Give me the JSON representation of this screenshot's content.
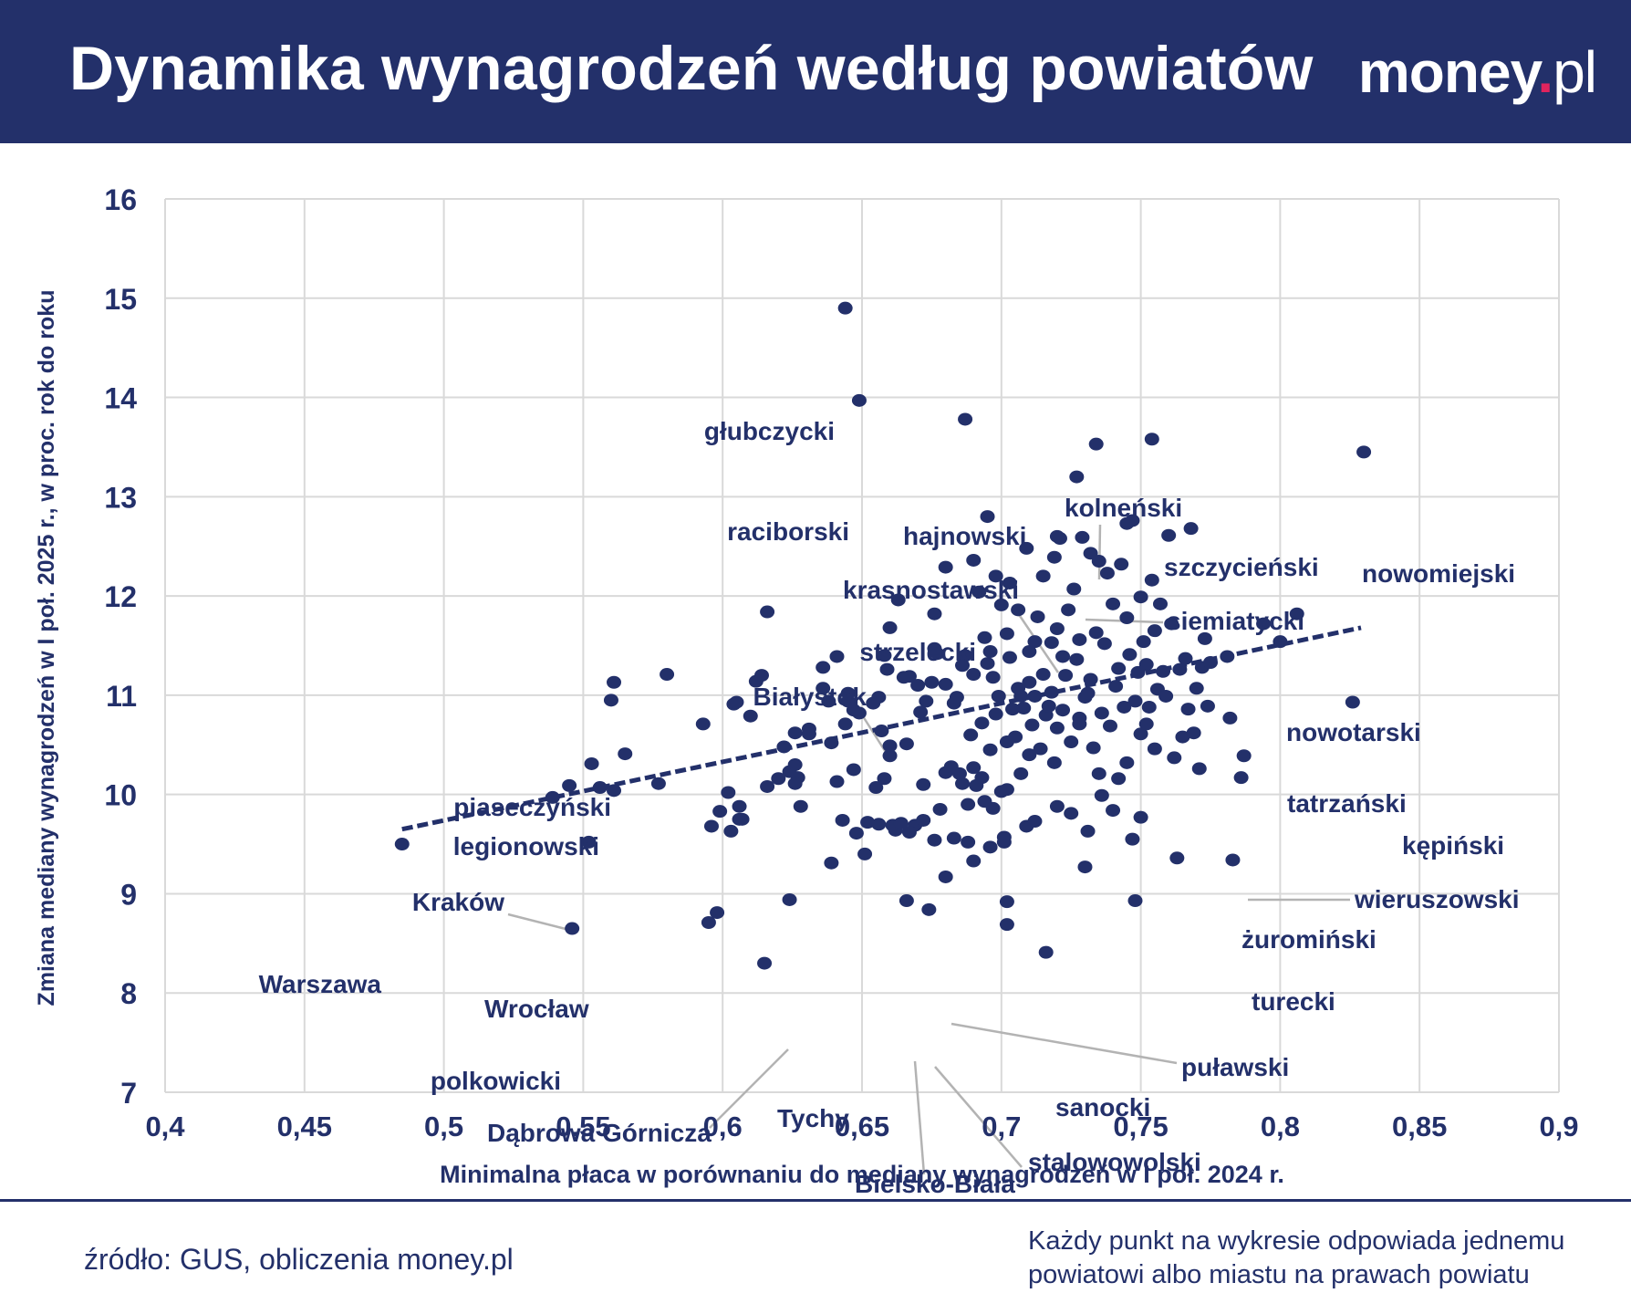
{
  "header": {
    "title": "Dynamika wynagrodzeń według powiatów",
    "logo_main": "money",
    "logo_dot": ".",
    "logo_suffix": "pl"
  },
  "footer": {
    "source": "źródło: GUS, obliczenia money.pl",
    "note_line1": "Każdy punkt na wykresie odpowiada jednemu",
    "note_line2": "powiatowi albo miastu na prawach powiatu"
  },
  "colors": {
    "navy": "#23306a",
    "grid": "#d9d9d9",
    "leader": "#b3b3b3",
    "logo_dot": "#e0245e",
    "background": "#ffffff"
  },
  "chart_data": {
    "type": "scatter",
    "title": "Dynamika wynagrodzeń według powiatów",
    "xlabel": "Minimalna płaca w porównaniu do mediany wynagrodzeń w I poł. 2024 r.",
    "ylabel": "Zmiana mediany wynagrodzeń w I poł. 2025 r., w proc. rok do roku",
    "xlim": [
      0.4,
      0.9
    ],
    "ylim": [
      7,
      16
    ],
    "x_ticks": [
      0.4,
      0.45,
      0.5,
      0.55,
      0.6,
      0.65,
      0.7,
      0.75,
      0.8,
      0.85,
      0.9
    ],
    "x_tick_labels": [
      "0,4",
      "0,45",
      "0,5",
      "0,55",
      "0,6",
      "0,65",
      "0,7",
      "0,75",
      "0,8",
      "0,85",
      "0,9"
    ],
    "y_ticks": [
      7,
      8,
      9,
      10,
      11,
      12,
      13,
      14,
      15,
      16
    ],
    "y_tick_labels": [
      "7",
      "8",
      "9",
      "10",
      "11",
      "12",
      "13",
      "14",
      "15",
      "16"
    ],
    "grid": true,
    "trendline": {
      "style": "dashed",
      "x": [
        0.485,
        0.829
      ],
      "y": [
        9.65,
        11.68
      ]
    },
    "labeled_points": [
      {
        "label": "głubczycki",
        "x": 0.644,
        "y": 14.9
      },
      {
        "label": "raciborski",
        "x": 0.649,
        "y": 13.97
      },
      {
        "label": "hajnowski",
        "x": 0.687,
        "y": 13.78
      },
      {
        "label": "kolneński",
        "x": 0.734,
        "y": 13.53
      },
      {
        "label": "szczycieński",
        "x": 0.754,
        "y": 13.58
      },
      {
        "label": "nowomiejski",
        "x": 0.83,
        "y": 13.45
      },
      {
        "label": "krasnostawski",
        "x": 0.72,
        "y": 12.6
      },
      {
        "label": "siemiatycki",
        "x": 0.727,
        "y": 13.2
      },
      {
        "label": "strzelecki",
        "x": 0.695,
        "y": 12.8
      },
      {
        "label": "Białystok",
        "x": 0.66,
        "y": 11.68
      },
      {
        "label": "nowotarski",
        "x": 0.806,
        "y": 11.82
      },
      {
        "label": "tatrzański",
        "x": 0.8,
        "y": 11.54
      },
      {
        "label": "kępiński",
        "x": 0.826,
        "y": 10.93
      },
      {
        "label": "piaseczyński",
        "x": 0.561,
        "y": 11.13
      },
      {
        "label": "legionowski",
        "x": 0.56,
        "y": 10.95
      },
      {
        "label": "Kraków",
        "x": 0.545,
        "y": 10.09
      },
      {
        "label": "wieruszowski",
        "x": 0.787,
        "y": 10.39
      },
      {
        "label": "żuromiński",
        "x": 0.786,
        "y": 10.17
      },
      {
        "label": "Warszawa",
        "x": 0.485,
        "y": 9.5
      },
      {
        "label": "Wrocław",
        "x": 0.552,
        "y": 9.52
      },
      {
        "label": "turecki",
        "x": 0.783,
        "y": 9.34
      },
      {
        "label": "puławski",
        "x": 0.68,
        "y": 9.17
      },
      {
        "label": "polkowicki",
        "x": 0.546,
        "y": 8.65
      },
      {
        "label": "Dąbrowa Górnicza",
        "x": 0.624,
        "y": 8.94
      },
      {
        "label": "Tychy",
        "x": 0.615,
        "y": 8.3
      },
      {
        "label": "sanocki",
        "x": 0.716,
        "y": 8.41
      },
      {
        "label": "stalowowolski",
        "x": 0.674,
        "y": 8.84
      },
      {
        "label": "Bielsko-Biała",
        "x": 0.666,
        "y": 8.93
      }
    ],
    "other_points": [
      [
        0.539,
        9.97
      ],
      [
        0.553,
        10.31
      ],
      [
        0.556,
        10.07
      ],
      [
        0.561,
        10.04
      ],
      [
        0.565,
        10.41
      ],
      [
        0.577,
        10.11
      ],
      [
        0.58,
        11.21
      ],
      [
        0.593,
        10.71
      ],
      [
        0.596,
        9.68
      ],
      [
        0.599,
        9.83
      ],
      [
        0.602,
        10.02
      ],
      [
        0.603,
        9.63
      ],
      [
        0.606,
        9.88
      ],
      [
        0.607,
        9.75
      ],
      [
        0.604,
        10.91
      ],
      [
        0.605,
        10.93
      ],
      [
        0.61,
        10.79
      ],
      [
        0.612,
        11.14
      ],
      [
        0.614,
        11.2
      ],
      [
        0.616,
        11.84
      ],
      [
        0.616,
        10.08
      ],
      [
        0.62,
        10.16
      ],
      [
        0.622,
        10.48
      ],
      [
        0.624,
        10.23
      ],
      [
        0.626,
        10.62
      ],
      [
        0.627,
        10.17
      ],
      [
        0.628,
        9.88
      ],
      [
        0.631,
        10.66
      ],
      [
        0.636,
        11.28
      ],
      [
        0.636,
        11.07
      ],
      [
        0.638,
        10.94
      ],
      [
        0.639,
        10.52
      ],
      [
        0.641,
        10.13
      ],
      [
        0.641,
        11.39
      ],
      [
        0.643,
        9.74
      ],
      [
        0.644,
        10.71
      ],
      [
        0.645,
        10.94
      ],
      [
        0.645,
        11.02
      ],
      [
        0.647,
        10.85
      ],
      [
        0.647,
        10.25
      ],
      [
        0.648,
        9.61
      ],
      [
        0.649,
        10.82
      ],
      [
        0.651,
        9.4
      ],
      [
        0.652,
        9.72
      ],
      [
        0.654,
        10.92
      ],
      [
        0.655,
        10.07
      ],
      [
        0.656,
        9.7
      ],
      [
        0.657,
        10.64
      ],
      [
        0.658,
        10.16
      ],
      [
        0.658,
        11.4
      ],
      [
        0.659,
        11.26
      ],
      [
        0.66,
        10.39
      ],
      [
        0.66,
        10.49
      ],
      [
        0.661,
        9.69
      ],
      [
        0.662,
        9.64
      ],
      [
        0.663,
        11.96
      ],
      [
        0.664,
        9.71
      ],
      [
        0.665,
        11.18
      ],
      [
        0.667,
        11.19
      ],
      [
        0.669,
        9.69
      ],
      [
        0.67,
        11.1
      ],
      [
        0.671,
        10.83
      ],
      [
        0.672,
        10.1
      ],
      [
        0.672,
        9.74
      ],
      [
        0.673,
        10.94
      ],
      [
        0.675,
        11.13
      ],
      [
        0.676,
        11.47
      ],
      [
        0.676,
        11.82
      ],
      [
        0.677,
        11.42
      ],
      [
        0.678,
        9.85
      ],
      [
        0.68,
        11.11
      ],
      [
        0.68,
        10.22
      ],
      [
        0.68,
        12.29
      ],
      [
        0.682,
        10.28
      ],
      [
        0.683,
        10.92
      ],
      [
        0.684,
        10.98
      ],
      [
        0.685,
        10.21
      ],
      [
        0.686,
        10.11
      ],
      [
        0.687,
        11.4
      ],
      [
        0.688,
        9.9
      ],
      [
        0.689,
        10.6
      ],
      [
        0.69,
        10.27
      ],
      [
        0.69,
        11.21
      ],
      [
        0.69,
        12.36
      ],
      [
        0.691,
        10.09
      ],
      [
        0.692,
        12.04
      ],
      [
        0.693,
        10.72
      ],
      [
        0.693,
        10.17
      ],
      [
        0.694,
        11.58
      ],
      [
        0.694,
        9.93
      ],
      [
        0.695,
        11.32
      ],
      [
        0.696,
        9.47
      ],
      [
        0.696,
        10.45
      ],
      [
        0.697,
        11.18
      ],
      [
        0.698,
        12.2
      ],
      [
        0.698,
        10.81
      ],
      [
        0.699,
        10.99
      ],
      [
        0.7,
        11.91
      ],
      [
        0.701,
        9.57
      ],
      [
        0.701,
        9.52
      ],
      [
        0.702,
        11.62
      ],
      [
        0.702,
        10.05
      ],
      [
        0.703,
        12.13
      ],
      [
        0.703,
        11.38
      ],
      [
        0.704,
        10.86
      ],
      [
        0.705,
        10.58
      ],
      [
        0.706,
        11.86
      ],
      [
        0.707,
        10.21
      ],
      [
        0.708,
        10.87
      ],
      [
        0.709,
        12.48
      ],
      [
        0.709,
        9.68
      ],
      [
        0.71,
        11.44
      ],
      [
        0.71,
        11.13
      ],
      [
        0.711,
        10.7
      ],
      [
        0.712,
        10.99
      ],
      [
        0.713,
        11.79
      ],
      [
        0.714,
        10.46
      ],
      [
        0.715,
        12.2
      ],
      [
        0.715,
        11.21
      ],
      [
        0.716,
        10.8
      ],
      [
        0.717,
        10.89
      ],
      [
        0.718,
        11.53
      ],
      [
        0.719,
        12.39
      ],
      [
        0.72,
        11.67
      ],
      [
        0.72,
        10.67
      ],
      [
        0.721,
        12.58
      ],
      [
        0.722,
        10.85
      ],
      [
        0.723,
        11.2
      ],
      [
        0.724,
        11.86
      ],
      [
        0.725,
        10.53
      ],
      [
        0.725,
        9.81
      ],
      [
        0.726,
        12.07
      ],
      [
        0.727,
        11.36
      ],
      [
        0.728,
        10.77
      ],
      [
        0.728,
        11.56
      ],
      [
        0.729,
        12.59
      ],
      [
        0.73,
        10.98
      ],
      [
        0.73,
        9.27
      ],
      [
        0.731,
        11.02
      ],
      [
        0.732,
        12.43
      ],
      [
        0.733,
        10.47
      ],
      [
        0.734,
        11.63
      ],
      [
        0.735,
        12.35
      ],
      [
        0.736,
        10.82
      ],
      [
        0.737,
        11.52
      ],
      [
        0.738,
        12.23
      ],
      [
        0.739,
        10.69
      ],
      [
        0.74,
        11.92
      ],
      [
        0.741,
        11.09
      ],
      [
        0.742,
        10.16
      ],
      [
        0.743,
        12.32
      ],
      [
        0.744,
        10.88
      ],
      [
        0.745,
        11.78
      ],
      [
        0.746,
        11.41
      ],
      [
        0.747,
        12.76
      ],
      [
        0.747,
        9.55
      ],
      [
        0.748,
        10.94
      ],
      [
        0.749,
        11.23
      ],
      [
        0.75,
        11.99
      ],
      [
        0.75,
        10.61
      ],
      [
        0.751,
        11.54
      ],
      [
        0.752,
        11.31
      ],
      [
        0.753,
        10.88
      ],
      [
        0.754,
        12.16
      ],
      [
        0.755,
        11.65
      ],
      [
        0.756,
        11.06
      ],
      [
        0.757,
        11.92
      ],
      [
        0.758,
        11.24
      ],
      [
        0.759,
        10.99
      ],
      [
        0.76,
        12.61
      ],
      [
        0.761,
        11.72
      ],
      [
        0.762,
        10.37
      ],
      [
        0.763,
        9.36
      ],
      [
        0.764,
        11.26
      ],
      [
        0.765,
        10.58
      ],
      [
        0.766,
        11.37
      ],
      [
        0.767,
        10.86
      ],
      [
        0.768,
        12.68
      ],
      [
        0.769,
        10.62
      ],
      [
        0.77,
        11.07
      ],
      [
        0.771,
        10.26
      ],
      [
        0.772,
        11.28
      ],
      [
        0.773,
        11.57
      ],
      [
        0.774,
        10.89
      ],
      [
        0.775,
        11.33
      ],
      [
        0.781,
        11.39
      ],
      [
        0.782,
        10.77
      ],
      [
        0.794,
        11.72
      ],
      [
        0.745,
        12.73
      ],
      [
        0.75,
        9.77
      ],
      [
        0.74,
        9.84
      ],
      [
        0.736,
        9.99
      ],
      [
        0.731,
        9.63
      ],
      [
        0.72,
        9.88
      ],
      [
        0.712,
        9.73
      ],
      [
        0.697,
        9.86
      ],
      [
        0.7,
        10.03
      ],
      [
        0.688,
        9.52
      ],
      [
        0.69,
        9.33
      ],
      [
        0.683,
        9.56
      ],
      [
        0.676,
        9.54
      ],
      [
        0.667,
        9.62
      ],
      [
        0.639,
        9.31
      ],
      [
        0.595,
        8.71
      ],
      [
        0.598,
        8.81
      ],
      [
        0.702,
        8.92
      ],
      [
        0.748,
        8.93
      ],
      [
        0.702,
        8.69
      ],
      [
        0.755,
        10.46
      ],
      [
        0.745,
        10.32
      ],
      [
        0.735,
        10.21
      ],
      [
        0.719,
        10.32
      ],
      [
        0.71,
        10.4
      ],
      [
        0.707,
        10.99
      ],
      [
        0.702,
        10.53
      ],
      [
        0.712,
        11.54
      ],
      [
        0.722,
        11.39
      ],
      [
        0.732,
        11.16
      ],
      [
        0.742,
        11.27
      ],
      [
        0.752,
        10.71
      ],
      [
        0.728,
        10.71
      ],
      [
        0.718,
        11.03
      ],
      [
        0.706,
        11.07
      ],
      [
        0.696,
        11.44
      ],
      [
        0.686,
        11.3
      ],
      [
        0.666,
        10.51
      ],
      [
        0.656,
        10.98
      ],
      [
        0.626,
        10.3
      ],
      [
        0.626,
        10.11
      ],
      [
        0.631,
        10.61
      ],
      [
        0.606,
        9.75
      ]
    ]
  }
}
